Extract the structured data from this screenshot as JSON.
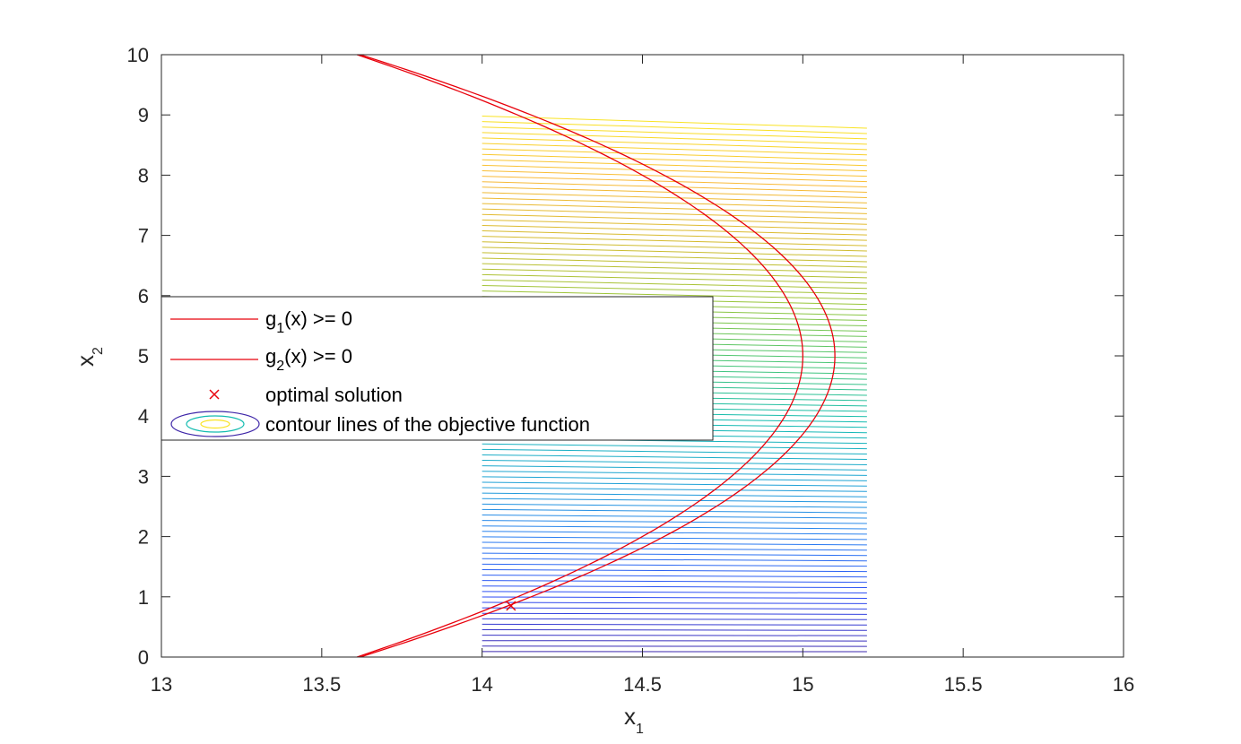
{
  "chart_data": {
    "type": "line",
    "xlabel": {
      "main": "x",
      "sub": "1"
    },
    "ylabel": {
      "main": "x",
      "sub": "2"
    },
    "xlim": [
      13,
      16
    ],
    "ylim": [
      0,
      10
    ],
    "xticks": [
      13,
      13.5,
      14,
      14.5,
      15,
      15.5,
      16
    ],
    "xtick_labels": [
      "13",
      "13.5",
      "14",
      "14.5",
      "15",
      "15.5",
      "16"
    ],
    "yticks": [
      0,
      1,
      2,
      3,
      4,
      5,
      6,
      7,
      8,
      9,
      10
    ],
    "ytick_labels": [
      "0",
      "1",
      "2",
      "3",
      "4",
      "5",
      "6",
      "7",
      "8",
      "9",
      "10"
    ],
    "grid": false,
    "legend_placement": "left",
    "constraints": [
      {
        "name": "g1(x) >= 0",
        "label_main": "g",
        "label_sub": "1",
        "label_rest": "(x) >= 0",
        "color": "#e8000b",
        "vertex": [
          15.0,
          5.0
        ],
        "curvature": 0.0556
      },
      {
        "name": "g2(x) >= 0",
        "label_main": "g",
        "label_sub": "2",
        "label_rest": "(x) >= 0",
        "color": "#e8000b",
        "vertex": [
          15.1,
          5.0
        ],
        "curvature": 0.0592
      }
    ],
    "optimal_solution": {
      "label": "optimal solution",
      "x": 14.09,
      "y": 0.85,
      "color": "#e8000b"
    },
    "contours": {
      "label": "contour lines of the objective function",
      "x_range": [
        14.0,
        15.2
      ],
      "y_start_left": 0.0,
      "y_end_left": 8.98,
      "count": 100,
      "tilt_right": -0.2,
      "colormap": [
        "#3e26a8",
        "#2f4cf4",
        "#2b7ff1",
        "#1fa4d4",
        "#14bcb0",
        "#4ac675",
        "#98c63a",
        "#d5bb2e",
        "#f9ba38",
        "#f9e322"
      ]
    }
  }
}
